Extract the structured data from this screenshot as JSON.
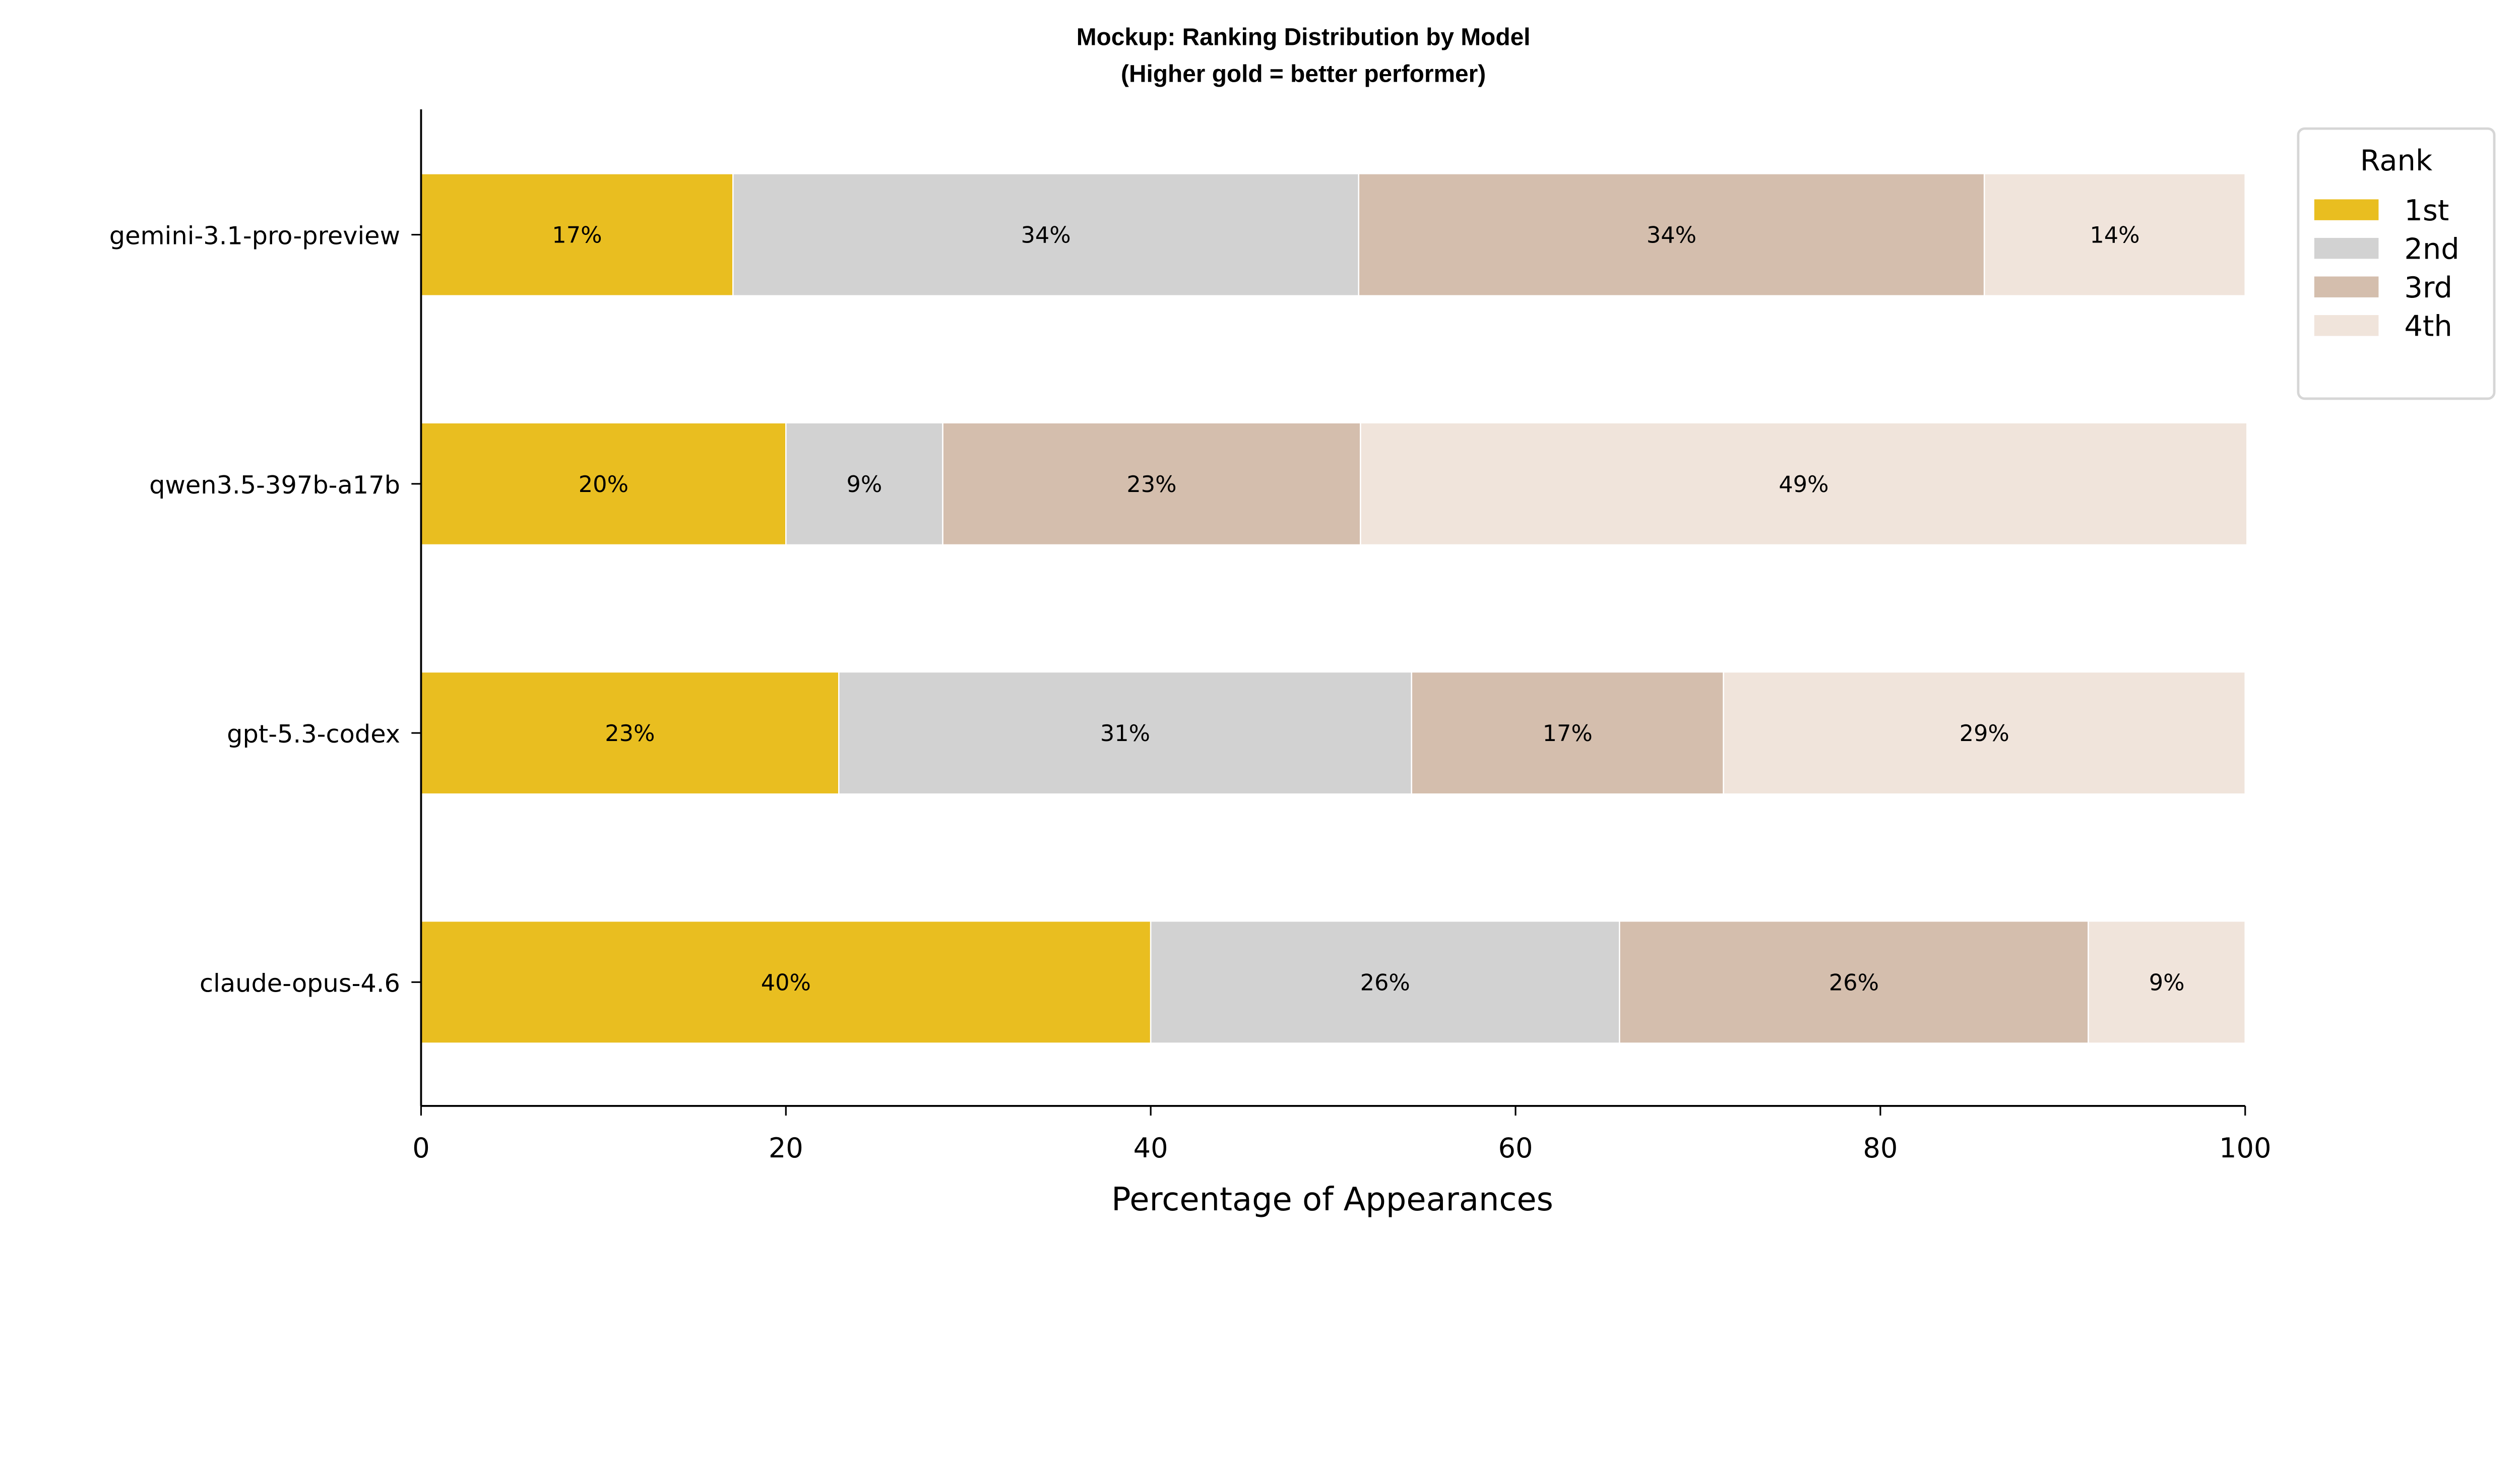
{
  "chart_data": {
    "type": "bar",
    "orientation": "horizontal",
    "stacked": true,
    "title": "Mockup: Ranking Distribution by Model",
    "subtitle": "(Higher gold = better performer)",
    "xlabel": "Percentage of Appearances",
    "ylabel": "",
    "xlim": [
      0,
      100
    ],
    "xticks": [
      0,
      20,
      40,
      60,
      80,
      100
    ],
    "grid": false,
    "legend": {
      "title": "Rank",
      "placement": "top-right outside"
    },
    "categories": [
      "gemini-3.1-pro-preview",
      "qwen3.5-397b-a17b",
      "gpt-5.3-codex",
      "claude-opus-4.6"
    ],
    "series": [
      {
        "name": "1st",
        "color": "#E9BE20",
        "values": [
          17.1,
          20.0,
          22.9,
          40.0
        ],
        "labels": [
          "17%",
          "20%",
          "23%",
          "40%"
        ]
      },
      {
        "name": "2nd",
        "color": "#D2D2D2",
        "values": [
          34.3,
          8.6,
          31.4,
          25.7
        ],
        "labels": [
          "34%",
          "9%",
          "31%",
          "26%"
        ]
      },
      {
        "name": "3rd",
        "color": "#D4BEAD",
        "values": [
          34.3,
          22.9,
          17.1,
          25.7
        ],
        "labels": [
          "34%",
          "23%",
          "17%",
          "26%"
        ]
      },
      {
        "name": "4th",
        "color": "#F0E4DB",
        "values": [
          14.3,
          48.6,
          28.6,
          8.6
        ],
        "labels": [
          "14%",
          "49%",
          "29%",
          "9%"
        ]
      }
    ]
  }
}
